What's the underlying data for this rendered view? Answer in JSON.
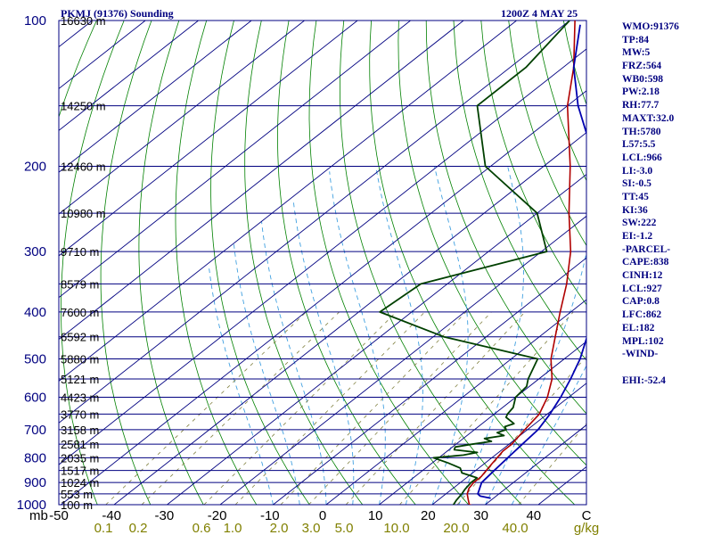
{
  "header": {
    "station": "PKMJ (91376) Sounding",
    "time": "1200Z  4 MAY 25"
  },
  "indices": [
    "WMO:91376",
    "TP:84",
    "MW:5",
    "FRZ:564",
    "WB0:598",
    "PW:2.18",
    "RH:77.7",
    "MAXT:32.0",
    "TH:5780",
    "L57:5.5",
    "LCL:966",
    "LI:-3.0",
    "SI:-0.5",
    "TT:45",
    "KI:36",
    "SW:222",
    "EI:-1.2",
    "-PARCEL-",
    "CAPE:838",
    "CINH:12",
    "LCL:927",
    "CAP:0.8",
    "LFC:862",
    "EL:182",
    "MPL:102",
    "-WIND-",
    "",
    "EHI:-52.4"
  ],
  "colors": {
    "frame": "#000080",
    "isobar": "#000080",
    "isotherm": "#000080",
    "dry_adiabat": "#008000",
    "moist_adiabat": "#40a0e0",
    "mixing_ratio": "#808040",
    "temperature": "#b00000",
    "dewpoint": "#004000",
    "parcel": "#0000b0",
    "pressure_label": "#000080",
    "temp_label": "#000000",
    "mixing_label": "#808000"
  },
  "chart_data": {
    "type": "line",
    "title": "PKMJ (91376) Sounding",
    "subtitle": "1200Z  4 MAY 25",
    "axes": {
      "pressure_unit": "mb",
      "temperature_unit": "C",
      "mixing_ratio_unit": "g/kg",
      "pressure_range": [
        1000,
        100
      ],
      "temperature_range": [
        -50,
        50
      ],
      "pressure_scale": "log",
      "skew": "skew-T log-p"
    },
    "pressure_ticks": [
      100,
      200,
      300,
      400,
      500,
      600,
      700,
      800,
      900,
      1000
    ],
    "height_labels": [
      {
        "p": 100,
        "label": "16630 m"
      },
      {
        "p": 150,
        "label": "14250 m"
      },
      {
        "p": 200,
        "label": "12460 m"
      },
      {
        "p": 250,
        "label": "10980 m"
      },
      {
        "p": 300,
        "label": "9710 m"
      },
      {
        "p": 350,
        "label": "8579 m"
      },
      {
        "p": 400,
        "label": "7600 m"
      },
      {
        "p": 450,
        "label": "6592 m"
      },
      {
        "p": 500,
        "label": "5880 m"
      },
      {
        "p": 550,
        "label": "5121 m"
      },
      {
        "p": 600,
        "label": "4423 m"
      },
      {
        "p": 650,
        "label": "3770 m"
      },
      {
        "p": 700,
        "label": "3158 m"
      },
      {
        "p": 750,
        "label": "2581 m"
      },
      {
        "p": 800,
        "label": "2035 m"
      },
      {
        "p": 850,
        "label": "1517 m"
      },
      {
        "p": 900,
        "label": "1024 m"
      },
      {
        "p": 950,
        "label": "553 m"
      },
      {
        "p": 1000,
        "label": "100 m"
      }
    ],
    "temperature_ticks": [
      -50,
      -40,
      -30,
      -20,
      -10,
      0,
      10,
      20,
      30,
      40,
      50
    ],
    "temperature_tick_labels": [
      "-50",
      "-40",
      "-30",
      "-20",
      "-10",
      "0",
      "10",
      "20",
      "30",
      "40",
      "C"
    ],
    "mixing_ratio_ticks": [
      {
        "w": 0.1,
        "label": "0.1"
      },
      {
        "w": 0.2,
        "label": "0.2"
      },
      {
        "w": 0.6,
        "label": "0.6"
      },
      {
        "w": 1.0,
        "label": "1.0"
      },
      {
        "w": 2.0,
        "label": "2.0"
      },
      {
        "w": 3.0,
        "label": "3.0"
      },
      {
        "w": 5.0,
        "label": "5.0"
      },
      {
        "w": 10.0,
        "label": "10.0"
      },
      {
        "w": 20.0,
        "label": "20.0"
      },
      {
        "w": 40.0,
        "label": "40.0"
      }
    ],
    "mixing_unit_label": "g/kg",
    "series": [
      {
        "key": "temperature",
        "points": [
          [
            1005,
            28
          ],
          [
            1000,
            27
          ],
          [
            975,
            25.5
          ],
          [
            950,
            24
          ],
          [
            925,
            23
          ],
          [
            900,
            22.5
          ],
          [
            875,
            22.5
          ],
          [
            850,
            22
          ],
          [
            825,
            21.5
          ],
          [
            800,
            21
          ],
          [
            775,
            20.5
          ],
          [
            750,
            20.5
          ],
          [
            725,
            20
          ],
          [
            700,
            19.5
          ],
          [
            675,
            19
          ],
          [
            650,
            18.5
          ],
          [
            600,
            16
          ],
          [
            550,
            12.5
          ],
          [
            500,
            7.5
          ],
          [
            450,
            3
          ],
          [
            400,
            -2
          ],
          [
            350,
            -7.5
          ],
          [
            300,
            -14.5
          ],
          [
            250,
            -24
          ],
          [
            200,
            -35
          ],
          [
            150,
            -50
          ],
          [
            125,
            -58
          ],
          [
            100,
            -69
          ]
        ]
      },
      {
        "key": "dewpoint",
        "points": [
          [
            1005,
            24.5
          ],
          [
            1000,
            24
          ],
          [
            980,
            23.5
          ],
          [
            950,
            23
          ],
          [
            930,
            22.5
          ],
          [
            900,
            22
          ],
          [
            880,
            22
          ],
          [
            860,
            18
          ],
          [
            840,
            16.5
          ],
          [
            820,
            13
          ],
          [
            800,
            9
          ],
          [
            790,
            14
          ],
          [
            780,
            16
          ],
          [
            770,
            11
          ],
          [
            760,
            10.5
          ],
          [
            750,
            13
          ],
          [
            740,
            16
          ],
          [
            730,
            14
          ],
          [
            720,
            17
          ],
          [
            710,
            15
          ],
          [
            700,
            16
          ],
          [
            690,
            15
          ],
          [
            680,
            16
          ],
          [
            660,
            13
          ],
          [
            650,
            12.5
          ],
          [
            630,
            12
          ],
          [
            600,
            10
          ],
          [
            570,
            9.5
          ],
          [
            550,
            8
          ],
          [
            500,
            5
          ],
          [
            450,
            -18
          ],
          [
            400,
            -36
          ],
          [
            350,
            -35
          ],
          [
            300,
            -19
          ],
          [
            250,
            -30
          ],
          [
            200,
            -51
          ],
          [
            150,
            -67
          ],
          [
            125,
            -67
          ],
          [
            100,
            -70
          ]
        ]
      },
      {
        "key": "parcel",
        "points": [
          [
            970,
            29.5
          ],
          [
            960,
            27
          ],
          [
            950,
            26
          ],
          [
            900,
            24
          ],
          [
            850,
            23.5
          ],
          [
            800,
            23
          ],
          [
            750,
            22.5
          ],
          [
            700,
            22
          ],
          [
            650,
            20.5
          ],
          [
            600,
            18.5
          ],
          [
            550,
            16
          ],
          [
            500,
            13
          ],
          [
            450,
            9
          ],
          [
            400,
            5
          ],
          [
            350,
            0
          ],
          [
            300,
            -7.5
          ],
          [
            250,
            -17.5
          ],
          [
            200,
            -30
          ],
          [
            150,
            -48
          ],
          [
            125,
            -58
          ],
          [
            102,
            -67
          ]
        ]
      }
    ]
  }
}
